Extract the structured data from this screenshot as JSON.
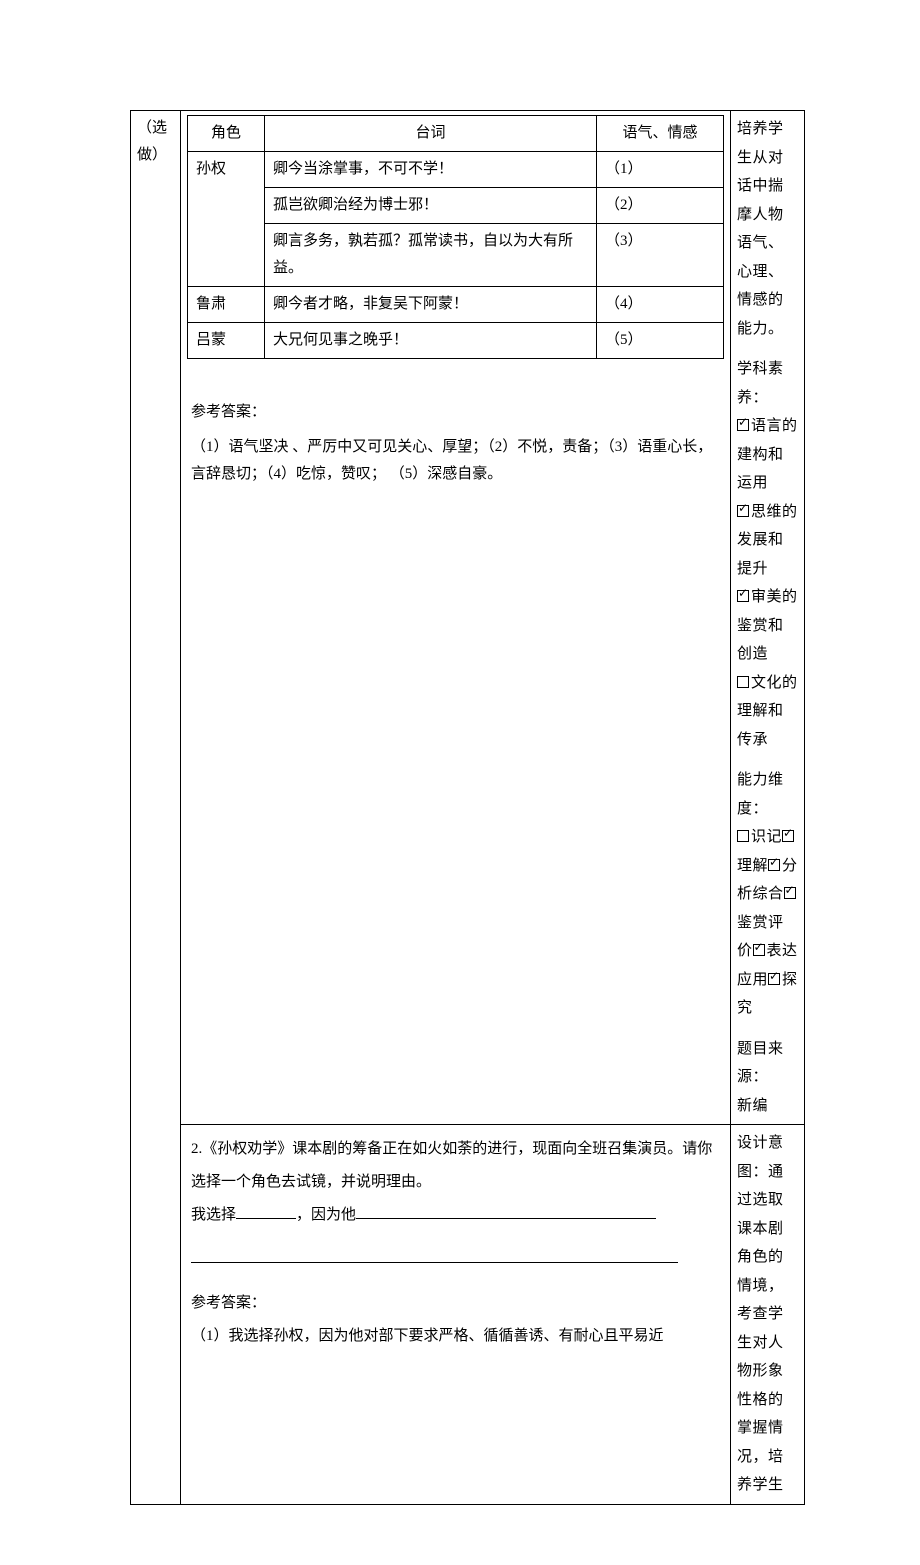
{
  "left_label": "（选做）",
  "dialogue_table": {
    "headers": [
      "角色",
      "台词",
      "语气、情感"
    ],
    "rows": [
      {
        "role": "孙权",
        "line": "卿今当涂掌事，不可不学！",
        "tone": "（1）"
      },
      {
        "role": "",
        "line": "孤岂欲卿治经为博士邪！",
        "tone": "（2）"
      },
      {
        "role": "",
        "line": "卿言多务，孰若孤？孤常读书，自以为大有所益。",
        "tone": "（3）"
      },
      {
        "role": "鲁肃",
        "line": "卿今者才略，非复吴下阿蒙！",
        "tone": "（4）"
      },
      {
        "role": "吕蒙",
        "line": "大兄何见事之晚乎！",
        "tone": "（5）"
      }
    ]
  },
  "answer_label": "参考答案：",
  "answer_text": "（1）语气坚决 、严厉中又可见关心、厚望；（2）不悦，责备；（3）语重心长，言辞恳切；（4）吃惊，赞叹； （5）深感自豪。",
  "side1": {
    "intro": "培养学生从对话中揣摩人物语气、心理、情感的能力。",
    "subject_label": "学科素养：",
    "items": [
      {
        "checked": true,
        "text": "语言的建构和运用"
      },
      {
        "checked": true,
        "text": "思维的发展和提升"
      },
      {
        "checked": true,
        "text": "审美的鉴赏和创造"
      },
      {
        "checked": false,
        "text": "文化的理解和传承"
      }
    ],
    "ability_label": "能力维度：",
    "abilities": [
      {
        "checked": false,
        "text": "识记"
      },
      {
        "checked": true,
        "text": "理解"
      },
      {
        "checked": true,
        "text": "分析综合"
      },
      {
        "checked": true,
        "text": "鉴赏评价"
      },
      {
        "checked": true,
        "text": "表达应用"
      },
      {
        "checked": true,
        "text": "探究"
      }
    ],
    "source_label": "题目来源：",
    "source_value": "新编"
  },
  "q2": {
    "prompt_a": "2.《孙权劝学》课本剧的筹备正在如火如荼的进行，现面向全班召集演员。请你选择一个角色去试镜，并说明理由。",
    "prompt_b_pre": "我选择",
    "prompt_b_mid": "，因为他",
    "answer_label": "参考答案：",
    "answer_text": "（1）我选择孙权，因为他对部下要求严格、循循善诱、有耐心且平易近"
  },
  "side2": {
    "label": "设计意图：",
    "text": "通过选取课本剧角色的情境，考查学生对人物形象性格的掌握情况，培养学生"
  }
}
